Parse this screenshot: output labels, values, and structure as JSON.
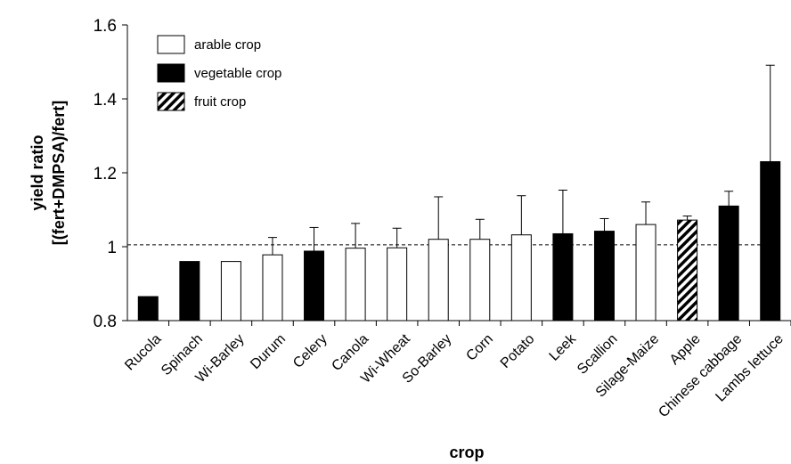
{
  "chart_data": {
    "type": "bar",
    "xlabel": "crop",
    "ylabel": [
      "yield ratio",
      "[(fert+DMPSA)/fert]"
    ],
    "ylim": [
      0.8,
      1.6
    ],
    "yticks": [
      "0.8",
      "1",
      "1.2",
      "1.4",
      "1.6"
    ],
    "reference_line": 1.005,
    "grid": false,
    "legend_position": "top-left",
    "legend": [
      {
        "key": "arable",
        "label": "arable crop"
      },
      {
        "key": "vegetable",
        "label": "vegetable crop"
      },
      {
        "key": "fruit",
        "label": "fruit crop"
      }
    ],
    "categories": [
      "Rucola",
      "Spinach",
      "Wi-Barley",
      "Durum",
      "Celery",
      "Canola",
      "Wi-Wheat",
      "So-Barley",
      "Corn",
      "Potato",
      "Leek",
      "Scallion",
      "Silage-Maize",
      "Apple",
      "Chinese cabbage",
      "Lambs lettuce"
    ],
    "values": [
      0.865,
      0.96,
      0.96,
      0.978,
      0.988,
      0.996,
      0.997,
      1.02,
      1.02,
      1.032,
      1.035,
      1.042,
      1.06,
      1.072,
      1.11,
      1.23
    ],
    "error_upper": [
      null,
      null,
      null,
      1.025,
      1.052,
      1.063,
      1.05,
      1.135,
      1.074,
      1.138,
      1.153,
      1.076,
      1.121,
      1.083,
      1.15,
      1.491
    ],
    "crop_type": [
      "vegetable",
      "vegetable",
      "arable",
      "arable",
      "vegetable",
      "arable",
      "arable",
      "arable",
      "arable",
      "arable",
      "vegetable",
      "vegetable",
      "arable",
      "fruit",
      "vegetable",
      "vegetable"
    ]
  }
}
